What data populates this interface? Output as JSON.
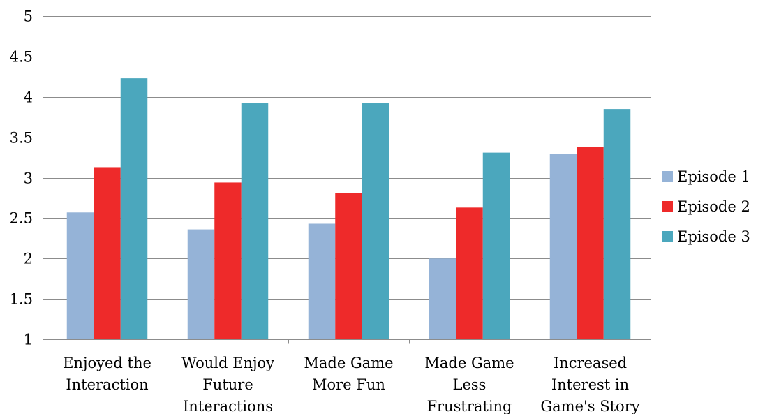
{
  "chart_data": {
    "type": "bar",
    "title": "",
    "xlabel": "",
    "ylabel": "",
    "ylim": [
      1,
      5
    ],
    "yticks": [
      "1",
      "1.5",
      "2",
      "2.5",
      "3",
      "3.5",
      "4",
      "4.5",
      "5"
    ],
    "grid": true,
    "legend_position": "right",
    "categories": [
      [
        "Enjoyed the",
        "Interaction"
      ],
      [
        "Would Enjoy",
        "Future",
        "Interactions"
      ],
      [
        "Made Game",
        "More Fun"
      ],
      [
        "Made Game",
        "Less",
        "Frustrating"
      ],
      [
        "Increased",
        "Interest in",
        "Game's Story"
      ]
    ],
    "series": [
      {
        "name": "Episode 1",
        "color": "#95b3d7",
        "values": [
          2.57,
          2.36,
          2.43,
          2.0,
          3.29
        ]
      },
      {
        "name": "Episode 2",
        "color": "#ee2a2a",
        "values": [
          3.13,
          2.94,
          2.81,
          2.63,
          3.38
        ]
      },
      {
        "name": "Episode 3",
        "color": "#4ba7bd",
        "values": [
          4.23,
          3.92,
          3.92,
          3.31,
          3.85
        ]
      }
    ]
  }
}
